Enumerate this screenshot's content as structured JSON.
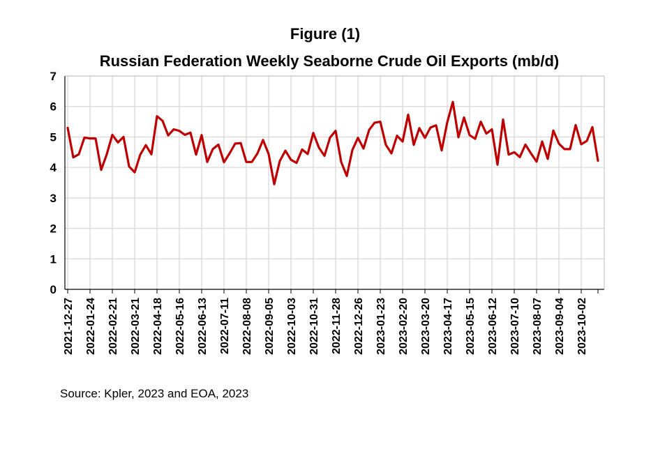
{
  "chart_data": {
    "type": "line",
    "title": "Figure (1)",
    "subtitle": "Russian Federation Weekly Seaborne Crude Oil Exports (mb/d)",
    "xlabel": "",
    "ylabel": "",
    "ylim": [
      0,
      7
    ],
    "yticks": [
      "0",
      "1",
      "2",
      "3",
      "4",
      "5",
      "6",
      "7"
    ],
    "grid": true,
    "legend": "none",
    "line_color": "#c00000",
    "x_tick_labels": [
      "2021-12-27",
      "2022-01-24",
      "2022-02-21",
      "2022-03-21",
      "2022-04-18",
      "2022-05-16",
      "2022-06-13",
      "2022-07-11",
      "2022-08-08",
      "2022-09-05",
      "2022-10-03",
      "2022-10-31",
      "2022-11-28",
      "2022-12-26",
      "2023-01-23",
      "2023-02-20",
      "2023-03-20",
      "2023-04-17",
      "2023-05-15",
      "2023-06-12",
      "2023-07-10",
      "2023-08-07",
      "2023-09-04",
      "2023-10-02"
    ],
    "x_start": "2021-12-27",
    "x_end": "2023-10-23",
    "series": [
      {
        "values": [
          5.3,
          4.33,
          4.43,
          4.98,
          4.95,
          4.95,
          3.92,
          4.43,
          5.07,
          4.82,
          5.0,
          4.03,
          3.84,
          4.42,
          4.73,
          4.43,
          5.68,
          5.53,
          5.05,
          5.25,
          5.2,
          5.07,
          5.14,
          4.42,
          5.06,
          4.18,
          4.6,
          4.75,
          4.17,
          4.46,
          4.78,
          4.8,
          4.18,
          4.18,
          4.46,
          4.9,
          4.44,
          3.45,
          4.21,
          4.55,
          4.25,
          4.15,
          4.59,
          4.44,
          5.13,
          4.65,
          4.38,
          4.98,
          5.2,
          4.18,
          3.72,
          4.57,
          4.97,
          4.62,
          5.23,
          5.47,
          5.5,
          4.74,
          4.46,
          5.04,
          4.85,
          5.73,
          4.74,
          5.29,
          4.97,
          5.31,
          5.38,
          4.56,
          5.48,
          6.15,
          4.99,
          5.64,
          5.06,
          4.94,
          5.5,
          5.11,
          5.25,
          4.09,
          5.57,
          4.42,
          4.5,
          4.34,
          4.75,
          4.46,
          4.19,
          4.85,
          4.28,
          5.21,
          4.78,
          4.6,
          4.6,
          5.39,
          4.76,
          4.87,
          5.32,
          4.22
        ]
      }
    ]
  },
  "source_note": "Source: Kpler, 2023 and EOA, 2023"
}
